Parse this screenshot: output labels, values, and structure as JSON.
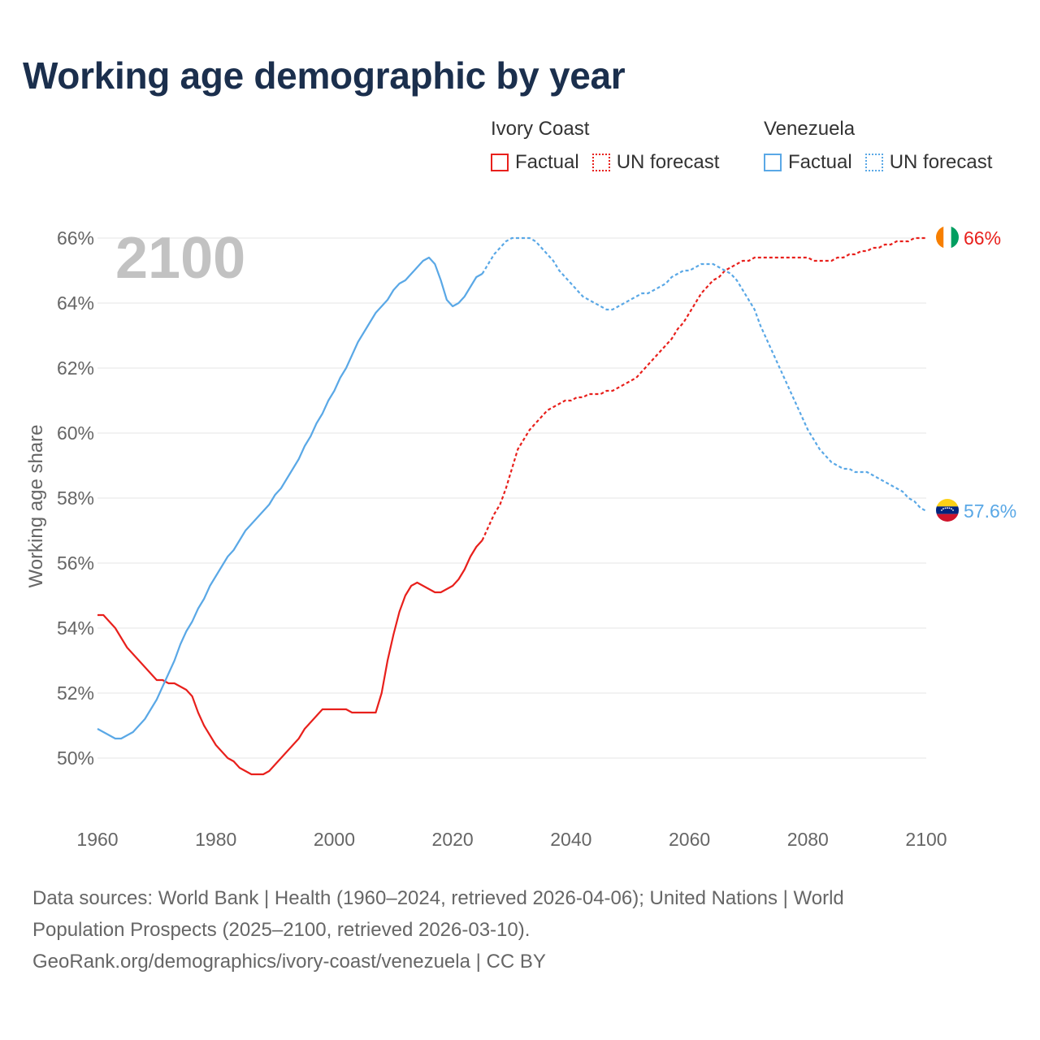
{
  "title": "Working age demographic by year",
  "legend": {
    "groups": [
      {
        "name": "Ivory Coast",
        "factual_label": "Factual",
        "forecast_label": "UN forecast",
        "color": "#e8201c"
      },
      {
        "name": "Venezuela",
        "factual_label": "Factual",
        "forecast_label": "UN forecast",
        "color": "#5aa8e6"
      }
    ]
  },
  "chart_data": {
    "type": "line",
    "year_overlay": "2100",
    "ylabel": "Working age share",
    "xlim": [
      1960,
      2100
    ],
    "ylim": [
      48.5,
      67.5
    ],
    "x_ticks": [
      "1960",
      "1980",
      "2000",
      "2020",
      "2040",
      "2060",
      "2080",
      "2100"
    ],
    "x_tick_values": [
      1960,
      1980,
      2000,
      2020,
      2040,
      2060,
      2080,
      2100
    ],
    "y_ticks": [
      "50%",
      "52%",
      "54%",
      "56%",
      "58%",
      "60%",
      "62%",
      "64%",
      "66%"
    ],
    "y_tick_values": [
      50,
      52,
      54,
      56,
      58,
      60,
      62,
      64,
      66
    ],
    "forecast_start": 2025,
    "series": [
      {
        "name": "Ivory Coast",
        "color": "#e8201c",
        "end_label": "66%",
        "flag": "ivory-coast-flag",
        "points": [
          [
            1960,
            54.4
          ],
          [
            1961,
            54.4
          ],
          [
            1962,
            54.2
          ],
          [
            1963,
            54
          ],
          [
            1964,
            53.7
          ],
          [
            1965,
            53.4
          ],
          [
            1966,
            53.2
          ],
          [
            1967,
            53
          ],
          [
            1968,
            52.8
          ],
          [
            1969,
            52.6
          ],
          [
            1970,
            52.4
          ],
          [
            1971,
            52.4
          ],
          [
            1972,
            52.3
          ],
          [
            1973,
            52.3
          ],
          [
            1974,
            52.2
          ],
          [
            1975,
            52.1
          ],
          [
            1976,
            51.9
          ],
          [
            1977,
            51.4
          ],
          [
            1978,
            51
          ],
          [
            1979,
            50.7
          ],
          [
            1980,
            50.4
          ],
          [
            1981,
            50.2
          ],
          [
            1982,
            50
          ],
          [
            1983,
            49.9
          ],
          [
            1984,
            49.7
          ],
          [
            1985,
            49.6
          ],
          [
            1986,
            49.5
          ],
          [
            1987,
            49.5
          ],
          [
            1988,
            49.5
          ],
          [
            1989,
            49.6
          ],
          [
            1990,
            49.8
          ],
          [
            1991,
            50
          ],
          [
            1992,
            50.2
          ],
          [
            1993,
            50.4
          ],
          [
            1994,
            50.6
          ],
          [
            1995,
            50.9
          ],
          [
            1996,
            51.1
          ],
          [
            1997,
            51.3
          ],
          [
            1998,
            51.5
          ],
          [
            1999,
            51.5
          ],
          [
            2000,
            51.5
          ],
          [
            2001,
            51.5
          ],
          [
            2002,
            51.5
          ],
          [
            2003,
            51.4
          ],
          [
            2004,
            51.4
          ],
          [
            2005,
            51.4
          ],
          [
            2006,
            51.4
          ],
          [
            2007,
            51.4
          ],
          [
            2008,
            52
          ],
          [
            2009,
            53
          ],
          [
            2010,
            53.8
          ],
          [
            2011,
            54.5
          ],
          [
            2012,
            55
          ],
          [
            2013,
            55.3
          ],
          [
            2014,
            55.4
          ],
          [
            2015,
            55.3
          ],
          [
            2016,
            55.2
          ],
          [
            2017,
            55.1
          ],
          [
            2018,
            55.1
          ],
          [
            2019,
            55.2
          ],
          [
            2020,
            55.3
          ],
          [
            2021,
            55.5
          ],
          [
            2022,
            55.8
          ],
          [
            2023,
            56.2
          ],
          [
            2024,
            56.5
          ],
          [
            2025,
            56.7
          ],
          [
            2026,
            57.1
          ],
          [
            2027,
            57.5
          ],
          [
            2028,
            57.8
          ],
          [
            2029,
            58.3
          ],
          [
            2030,
            58.9
          ],
          [
            2031,
            59.5
          ],
          [
            2032,
            59.8
          ],
          [
            2033,
            60.1
          ],
          [
            2034,
            60.3
          ],
          [
            2035,
            60.5
          ],
          [
            2036,
            60.7
          ],
          [
            2037,
            60.8
          ],
          [
            2038,
            60.9
          ],
          [
            2039,
            61
          ],
          [
            2040,
            61
          ],
          [
            2041,
            61.1
          ],
          [
            2042,
            61.1
          ],
          [
            2043,
            61.2
          ],
          [
            2044,
            61.2
          ],
          [
            2045,
            61.2
          ],
          [
            2046,
            61.3
          ],
          [
            2047,
            61.3
          ],
          [
            2048,
            61.4
          ],
          [
            2049,
            61.5
          ],
          [
            2050,
            61.6
          ],
          [
            2051,
            61.7
          ],
          [
            2052,
            61.9
          ],
          [
            2053,
            62.1
          ],
          [
            2054,
            62.3
          ],
          [
            2055,
            62.5
          ],
          [
            2056,
            62.7
          ],
          [
            2057,
            62.9
          ],
          [
            2058,
            63.2
          ],
          [
            2059,
            63.4
          ],
          [
            2060,
            63.7
          ],
          [
            2061,
            64
          ],
          [
            2062,
            64.3
          ],
          [
            2063,
            64.5
          ],
          [
            2064,
            64.7
          ],
          [
            2065,
            64.8
          ],
          [
            2066,
            65
          ],
          [
            2067,
            65.1
          ],
          [
            2068,
            65.2
          ],
          [
            2069,
            65.3
          ],
          [
            2070,
            65.3
          ],
          [
            2071,
            65.4
          ],
          [
            2072,
            65.4
          ],
          [
            2073,
            65.4
          ],
          [
            2074,
            65.4
          ],
          [
            2075,
            65.4
          ],
          [
            2076,
            65.4
          ],
          [
            2077,
            65.4
          ],
          [
            2078,
            65.4
          ],
          [
            2079,
            65.4
          ],
          [
            2080,
            65.4
          ],
          [
            2081,
            65.3
          ],
          [
            2082,
            65.3
          ],
          [
            2083,
            65.3
          ],
          [
            2084,
            65.3
          ],
          [
            2085,
            65.4
          ],
          [
            2086,
            65.4
          ],
          [
            2087,
            65.5
          ],
          [
            2088,
            65.5
          ],
          [
            2089,
            65.6
          ],
          [
            2090,
            65.6
          ],
          [
            2091,
            65.7
          ],
          [
            2092,
            65.7
          ],
          [
            2093,
            65.8
          ],
          [
            2094,
            65.8
          ],
          [
            2095,
            65.9
          ],
          [
            2096,
            65.9
          ],
          [
            2097,
            65.9
          ],
          [
            2098,
            66
          ],
          [
            2099,
            66
          ],
          [
            2100,
            66
          ]
        ]
      },
      {
        "name": "Venezuela",
        "color": "#5aa8e6",
        "end_label": "57.6%",
        "flag": "venezuela-flag",
        "points": [
          [
            1960,
            50.9
          ],
          [
            1961,
            50.8
          ],
          [
            1962,
            50.7
          ],
          [
            1963,
            50.6
          ],
          [
            1964,
            50.6
          ],
          [
            1965,
            50.7
          ],
          [
            1966,
            50.8
          ],
          [
            1967,
            51
          ],
          [
            1968,
            51.2
          ],
          [
            1969,
            51.5
          ],
          [
            1970,
            51.8
          ],
          [
            1971,
            52.2
          ],
          [
            1972,
            52.6
          ],
          [
            1973,
            53
          ],
          [
            1974,
            53.5
          ],
          [
            1975,
            53.9
          ],
          [
            1976,
            54.2
          ],
          [
            1977,
            54.6
          ],
          [
            1978,
            54.9
          ],
          [
            1979,
            55.3
          ],
          [
            1980,
            55.6
          ],
          [
            1981,
            55.9
          ],
          [
            1982,
            56.2
          ],
          [
            1983,
            56.4
          ],
          [
            1984,
            56.7
          ],
          [
            1985,
            57
          ],
          [
            1986,
            57.2
          ],
          [
            1987,
            57.4
          ],
          [
            1988,
            57.6
          ],
          [
            1989,
            57.8
          ],
          [
            1990,
            58.1
          ],
          [
            1991,
            58.3
          ],
          [
            1992,
            58.6
          ],
          [
            1993,
            58.9
          ],
          [
            1994,
            59.2
          ],
          [
            1995,
            59.6
          ],
          [
            1996,
            59.9
          ],
          [
            1997,
            60.3
          ],
          [
            1998,
            60.6
          ],
          [
            1999,
            61
          ],
          [
            2000,
            61.3
          ],
          [
            2001,
            61.7
          ],
          [
            2002,
            62
          ],
          [
            2003,
            62.4
          ],
          [
            2004,
            62.8
          ],
          [
            2005,
            63.1
          ],
          [
            2006,
            63.4
          ],
          [
            2007,
            63.7
          ],
          [
            2008,
            63.9
          ],
          [
            2009,
            64.1
          ],
          [
            2010,
            64.4
          ],
          [
            2011,
            64.6
          ],
          [
            2012,
            64.7
          ],
          [
            2013,
            64.9
          ],
          [
            2014,
            65.1
          ],
          [
            2015,
            65.3
          ],
          [
            2016,
            65.4
          ],
          [
            2017,
            65.2
          ],
          [
            2018,
            64.7
          ],
          [
            2019,
            64.1
          ],
          [
            2020,
            63.9
          ],
          [
            2021,
            64
          ],
          [
            2022,
            64.2
          ],
          [
            2023,
            64.5
          ],
          [
            2024,
            64.8
          ],
          [
            2025,
            64.9
          ],
          [
            2026,
            65.2
          ],
          [
            2027,
            65.5
          ],
          [
            2028,
            65.7
          ],
          [
            2029,
            65.9
          ],
          [
            2030,
            66
          ],
          [
            2031,
            66
          ],
          [
            2032,
            66
          ],
          [
            2033,
            66
          ],
          [
            2034,
            65.9
          ],
          [
            2035,
            65.7
          ],
          [
            2036,
            65.5
          ],
          [
            2037,
            65.3
          ],
          [
            2038,
            65
          ],
          [
            2039,
            64.8
          ],
          [
            2040,
            64.6
          ],
          [
            2041,
            64.4
          ],
          [
            2042,
            64.2
          ],
          [
            2043,
            64.1
          ],
          [
            2044,
            64
          ],
          [
            2045,
            63.9
          ],
          [
            2046,
            63.8
          ],
          [
            2047,
            63.8
          ],
          [
            2048,
            63.9
          ],
          [
            2049,
            64
          ],
          [
            2050,
            64.1
          ],
          [
            2051,
            64.2
          ],
          [
            2052,
            64.3
          ],
          [
            2053,
            64.3
          ],
          [
            2054,
            64.4
          ],
          [
            2055,
            64.5
          ],
          [
            2056,
            64.6
          ],
          [
            2057,
            64.8
          ],
          [
            2058,
            64.9
          ],
          [
            2059,
            65
          ],
          [
            2060,
            65
          ],
          [
            2061,
            65.1
          ],
          [
            2062,
            65.2
          ],
          [
            2063,
            65.2
          ],
          [
            2064,
            65.2
          ],
          [
            2065,
            65.1
          ],
          [
            2066,
            65
          ],
          [
            2067,
            64.9
          ],
          [
            2068,
            64.7
          ],
          [
            2069,
            64.4
          ],
          [
            2070,
            64.1
          ],
          [
            2071,
            63.8
          ],
          [
            2072,
            63.3
          ],
          [
            2073,
            62.9
          ],
          [
            2074,
            62.5
          ],
          [
            2075,
            62.1
          ],
          [
            2076,
            61.7
          ],
          [
            2077,
            61.3
          ],
          [
            2078,
            60.9
          ],
          [
            2079,
            60.5
          ],
          [
            2080,
            60.1
          ],
          [
            2081,
            59.8
          ],
          [
            2082,
            59.5
          ],
          [
            2083,
            59.3
          ],
          [
            2084,
            59.1
          ],
          [
            2085,
            59
          ],
          [
            2086,
            58.9
          ],
          [
            2087,
            58.9
          ],
          [
            2088,
            58.8
          ],
          [
            2089,
            58.8
          ],
          [
            2090,
            58.8
          ],
          [
            2091,
            58.7
          ],
          [
            2092,
            58.6
          ],
          [
            2093,
            58.5
          ],
          [
            2094,
            58.4
          ],
          [
            2095,
            58.3
          ],
          [
            2096,
            58.2
          ],
          [
            2097,
            58
          ],
          [
            2098,
            57.9
          ],
          [
            2099,
            57.7
          ],
          [
            2100,
            57.6
          ]
        ]
      }
    ]
  },
  "footer": {
    "line1": "Data sources: World Bank | Health (1960–2024, retrieved 2026-04-06); United Nations | World",
    "line2": "Population Prospects (2025–2100, retrieved 2026-03-10).",
    "line3": "GeoRank.org/demographics/ivory-coast/venezuela | CC BY"
  }
}
